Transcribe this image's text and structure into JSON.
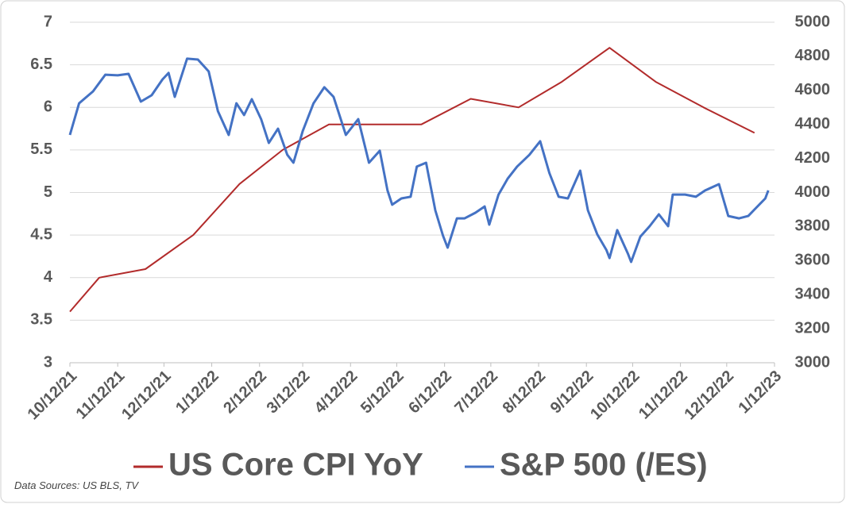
{
  "chart_data": {
    "type": "line",
    "xlim": [
      "2021-10-12",
      "2023-01-12"
    ],
    "xticks": [
      {
        "value": "2021-10-12",
        "label": "10/12/21"
      },
      {
        "value": "2021-11-12",
        "label": "11/12/21"
      },
      {
        "value": "2021-12-12",
        "label": "12/12/21"
      },
      {
        "value": "2022-01-12",
        "label": "1/12/22"
      },
      {
        "value": "2022-02-12",
        "label": "2/12/22"
      },
      {
        "value": "2022-03-12",
        "label": "3/12/22"
      },
      {
        "value": "2022-04-12",
        "label": "4/12/22"
      },
      {
        "value": "2022-05-12",
        "label": "5/12/22"
      },
      {
        "value": "2022-06-12",
        "label": "6/12/22"
      },
      {
        "value": "2022-07-12",
        "label": "7/12/22"
      },
      {
        "value": "2022-08-12",
        "label": "8/12/22"
      },
      {
        "value": "2022-09-12",
        "label": "9/12/22"
      },
      {
        "value": "2022-10-12",
        "label": "10/12/22"
      },
      {
        "value": "2022-11-12",
        "label": "11/12/22"
      },
      {
        "value": "2022-12-12",
        "label": "12/12/22"
      },
      {
        "value": "2023-01-12",
        "label": "1/12/23"
      }
    ],
    "ylim": [
      3,
      7
    ],
    "yticks": [
      3,
      3.5,
      4,
      4.5,
      5,
      5.5,
      6,
      6.5,
      7
    ],
    "y2lim": [
      3000,
      5000
    ],
    "y2ticks": [
      3000,
      3200,
      3400,
      3600,
      3800,
      4000,
      4200,
      4400,
      4600,
      4800,
      5000
    ],
    "grid": true,
    "series": [
      {
        "name": "US Core CPI YoY",
        "color": "#b22b2b",
        "axis": "y",
        "x": [
          "2021-10-12",
          "2021-10-31",
          "2021-11-30",
          "2021-12-31",
          "2022-01-30",
          "2022-02-27",
          "2022-03-29",
          "2022-04-29",
          "2022-05-28",
          "2022-06-29",
          "2022-07-30",
          "2022-08-27",
          "2022-09-27",
          "2022-10-27",
          "2022-11-27",
          "2022-12-30"
        ],
        "values": [
          3.6,
          4.0,
          4.1,
          4.5,
          5.1,
          5.5,
          5.8,
          5.8,
          5.8,
          6.1,
          6.0,
          6.3,
          6.7,
          6.3,
          6.0,
          5.7
        ]
      },
      {
        "name": "S&P 500 (/ES)",
        "color": "#4472c4",
        "axis": "y2",
        "x": [
          "2021-10-12",
          "2021-10-18",
          "2021-10-27",
          "2021-11-04",
          "2021-11-12",
          "2021-11-19",
          "2021-11-27",
          "2021-12-04",
          "2021-12-11",
          "2021-12-15",
          "2021-12-19",
          "2021-12-27",
          "2022-01-03",
          "2022-01-10",
          "2022-01-16",
          "2022-01-23",
          "2022-01-28",
          "2022-02-02",
          "2022-02-07",
          "2022-02-13",
          "2022-02-18",
          "2022-02-24",
          "2022-03-02",
          "2022-03-06",
          "2022-03-12",
          "2022-03-19",
          "2022-03-26",
          "2022-04-01",
          "2022-04-09",
          "2022-04-17",
          "2022-04-24",
          "2022-05-01",
          "2022-05-06",
          "2022-05-09",
          "2022-05-15",
          "2022-05-21",
          "2022-05-25",
          "2022-05-31",
          "2022-06-06",
          "2022-06-11",
          "2022-06-14",
          "2022-06-20",
          "2022-06-25",
          "2022-07-02",
          "2022-07-08",
          "2022-07-11",
          "2022-07-17",
          "2022-07-23",
          "2022-07-29",
          "2022-08-06",
          "2022-08-13",
          "2022-08-19",
          "2022-08-25",
          "2022-08-31",
          "2022-09-08",
          "2022-09-13",
          "2022-09-19",
          "2022-09-25",
          "2022-09-27",
          "2022-10-02",
          "2022-10-09",
          "2022-10-11",
          "2022-10-17",
          "2022-10-23",
          "2022-10-29",
          "2022-11-04",
          "2022-11-07",
          "2022-11-15",
          "2022-11-22",
          "2022-11-28",
          "2022-12-07",
          "2022-12-13",
          "2022-12-20",
          "2022-12-26",
          "2022-12-31",
          "2023-01-06",
          "2023-01-08"
        ],
        "values": [
          4338,
          4524,
          4594,
          4692,
          4688,
          4697,
          4534,
          4571,
          4664,
          4702,
          4562,
          4786,
          4781,
          4711,
          4478,
          4338,
          4524,
          4455,
          4548,
          4431,
          4291,
          4375,
          4221,
          4175,
          4361,
          4524,
          4618,
          4562,
          4338,
          4431,
          4175,
          4245,
          4012,
          3928,
          3965,
          3975,
          4152,
          4175,
          3895,
          3746,
          3676,
          3848,
          3848,
          3881,
          3918,
          3811,
          3988,
          4082,
          4152,
          4221,
          4301,
          4114,
          3975,
          3965,
          4128,
          3895,
          3755,
          3662,
          3615,
          3779,
          3639,
          3592,
          3741,
          3802,
          3872,
          3802,
          3988,
          3988,
          3975,
          4012,
          4049,
          3862,
          3848,
          3862,
          3909,
          3965,
          4012
        ]
      }
    ],
    "source": "Data Sources: US BLS, TV"
  }
}
